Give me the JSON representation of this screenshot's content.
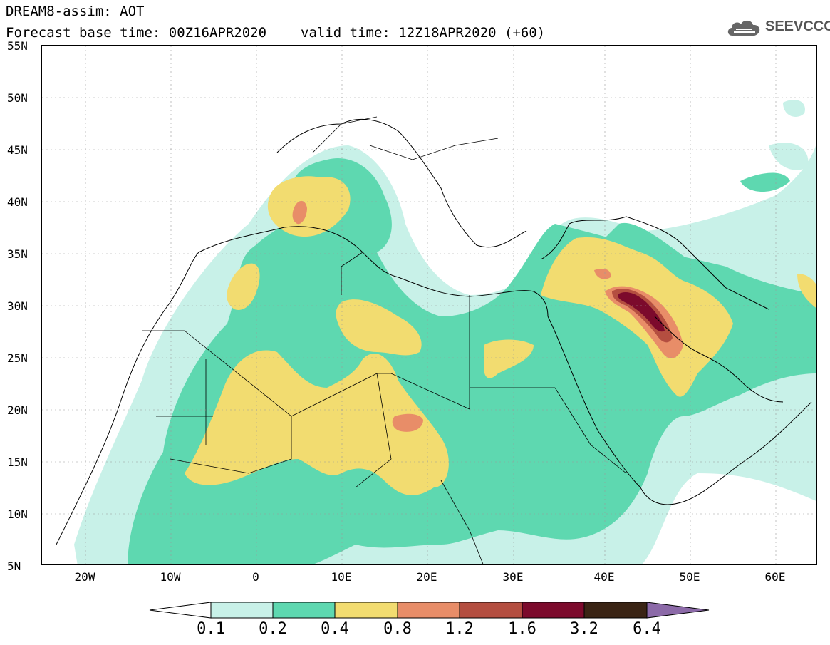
{
  "title": {
    "line1": "DREAM8-assim: AOT",
    "base_time": "Forecast base time: 00Z16APR2020",
    "valid_time": "valid time: 12Z18APR2020 (+60)"
  },
  "logo": {
    "text": "SEEVCCC",
    "icon": "cloud-icon"
  },
  "map": {
    "projection": "lat-lon",
    "lon_range": [
      -25,
      65
    ],
    "lat_range": [
      5,
      55
    ],
    "lat_ticks": [
      "55N",
      "50N",
      "45N",
      "40N",
      "35N",
      "30N",
      "25N",
      "20N",
      "15N",
      "10N",
      "5N"
    ],
    "lon_ticks": [
      "20W",
      "10W",
      "0",
      "10E",
      "20E",
      "30E",
      "40E",
      "50E",
      "60E"
    ]
  },
  "colorbar": {
    "levels": [
      "0.1",
      "0.2",
      "0.4",
      "0.8",
      "1.2",
      "1.6",
      "3.2",
      "6.4"
    ],
    "colors": [
      "#ffffff",
      "#c8f1e8",
      "#5ed8b0",
      "#f2dc70",
      "#e88d68",
      "#b44e40",
      "#7c0a2c",
      "#3a2414",
      "#8c6aa8"
    ]
  }
}
